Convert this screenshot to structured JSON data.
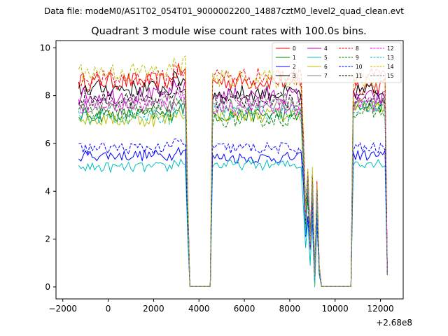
{
  "chart_data": {
    "type": "line",
    "suptitle": "Data file: modeM0/AS1T02_054T01_9000002200_14887cztM0_level2_quad_clean.evt",
    "title": "Quadrant 3 module wise count rates with 100.0s bins.",
    "xlabel": "",
    "ylabel": "",
    "x_offset_label": "+2.68e8",
    "xlim": [
      -2300,
      13000
    ],
    "ylim": [
      -0.5,
      10.3
    ],
    "xticks": [
      -2000,
      0,
      2000,
      4000,
      6000,
      8000,
      10000,
      12000
    ],
    "xtick_labels": [
      "−2000",
      "0",
      "2000",
      "4000",
      "6000",
      "8000",
      "10000",
      "12000"
    ],
    "yticks": [
      0,
      2,
      4,
      6,
      8,
      10
    ],
    "ytick_labels": [
      "0",
      "2",
      "4",
      "6",
      "8",
      "10"
    ],
    "legend_location": "top-right",
    "bin_seconds": 100,
    "segments": [
      {
        "start": -1300,
        "end": 3400
      },
      {
        "start": 4600,
        "end": 8500
      },
      {
        "start": 10800,
        "end": 12300
      }
    ],
    "series": [
      {
        "name": "0",
        "color": "#ff0000",
        "style": "solid",
        "base": 8.6,
        "seg_levels": [
          8.6,
          8.6,
          8.4
        ]
      },
      {
        "name": "1",
        "color": "#008000",
        "style": "solid",
        "base": 7.2,
        "seg_levels": [
          7.2,
          7.2,
          7.6
        ]
      },
      {
        "name": "2",
        "color": "#0000ff",
        "style": "solid",
        "base": 5.5,
        "seg_levels": [
          5.5,
          5.4,
          5.5
        ]
      },
      {
        "name": "3",
        "color": "#000000",
        "style": "solid",
        "base": 8.3,
        "seg_levels": [
          8.3,
          8.1,
          8.2
        ]
      },
      {
        "name": "4",
        "color": "#bf00bf",
        "style": "solid",
        "base": 8.0,
        "seg_levels": [
          8.0,
          8.0,
          7.9
        ]
      },
      {
        "name": "5",
        "color": "#00bfbf",
        "style": "solid",
        "base": 5.0,
        "seg_levels": [
          5.0,
          5.1,
          5.2
        ]
      },
      {
        "name": "6",
        "color": "#bfbf00",
        "style": "solid",
        "base": 7.0,
        "seg_levels": [
          7.0,
          7.2,
          7.6
        ]
      },
      {
        "name": "7",
        "color": "#808080",
        "style": "solid",
        "base": 7.5,
        "seg_levels": [
          7.5,
          7.6,
          7.6
        ]
      },
      {
        "name": "8",
        "color": "#ff0000",
        "style": "dashed",
        "base": 8.7,
        "seg_levels": [
          8.7,
          8.8,
          8.8
        ]
      },
      {
        "name": "9",
        "color": "#008000",
        "style": "dashed",
        "base": 7.3,
        "seg_levels": [
          7.3,
          7.0,
          7.3
        ]
      },
      {
        "name": "10",
        "color": "#0000ff",
        "style": "dashed",
        "base": 5.8,
        "seg_levels": [
          5.8,
          5.8,
          5.8
        ]
      },
      {
        "name": "11",
        "color": "#000000",
        "style": "dashed",
        "base": 7.9,
        "seg_levels": [
          7.9,
          7.8,
          7.9
        ]
      },
      {
        "name": "12",
        "color": "#ff00ff",
        "style": "dashed",
        "base": 7.6,
        "seg_levels": [
          7.6,
          7.5,
          7.7
        ]
      },
      {
        "name": "13",
        "color": "#00bfbf",
        "style": "dashed",
        "base": 7.1,
        "seg_levels": [
          7.1,
          7.3,
          7.5
        ]
      },
      {
        "name": "14",
        "color": "#bfbf00",
        "style": "dashed",
        "base": 9.0,
        "seg_levels": [
          9.0,
          8.7,
          8.6
        ]
      },
      {
        "name": "15",
        "color": "#808080",
        "style": "dashed",
        "base": 7.7,
        "seg_levels": [
          7.7,
          7.8,
          7.6
        ]
      }
    ]
  }
}
